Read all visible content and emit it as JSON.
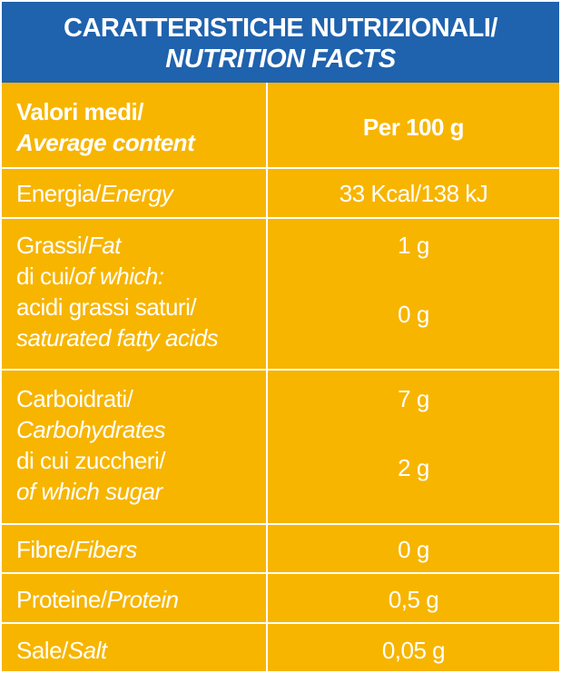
{
  "title": {
    "italian": "CARATTERISTICHE NUTRIZIONALI/",
    "english": "NUTRITION FACTS"
  },
  "header_row": {
    "left_italian": "Valori medi/",
    "left_english": "Average content",
    "right": "Per 100 g"
  },
  "rows": [
    {
      "label_it": "Energia/",
      "label_en": "Energy",
      "value": "33 Kcal/138 kJ"
    },
    {
      "label_it": "Grassi/",
      "label_en": "Fat",
      "sub_it": "di cui/",
      "sub_en": "of which:",
      "sub2_it": "acidi grassi saturi/",
      "sub2_en": "saturated fatty acids",
      "value": "1 g",
      "value2": "0 g"
    },
    {
      "label_it": "Carboidrati/",
      "label_en": "Carbohydrates",
      "sub_it": "di cui zuccheri/",
      "sub_en": "of which sugar",
      "value": "7 g",
      "value2": "2 g"
    },
    {
      "label_it": "Fibre/",
      "label_en": "Fibers",
      "value": "0 g"
    },
    {
      "label_it": "Proteine/",
      "label_en": "Protein",
      "value": "0,5 g"
    },
    {
      "label_it": "Sale/",
      "label_en": "Salt",
      "value": "0,05 g"
    }
  ],
  "colors": {
    "header_blue": "#1f62ad",
    "table_yellow": "#f7b500",
    "text": "#ffffff"
  }
}
